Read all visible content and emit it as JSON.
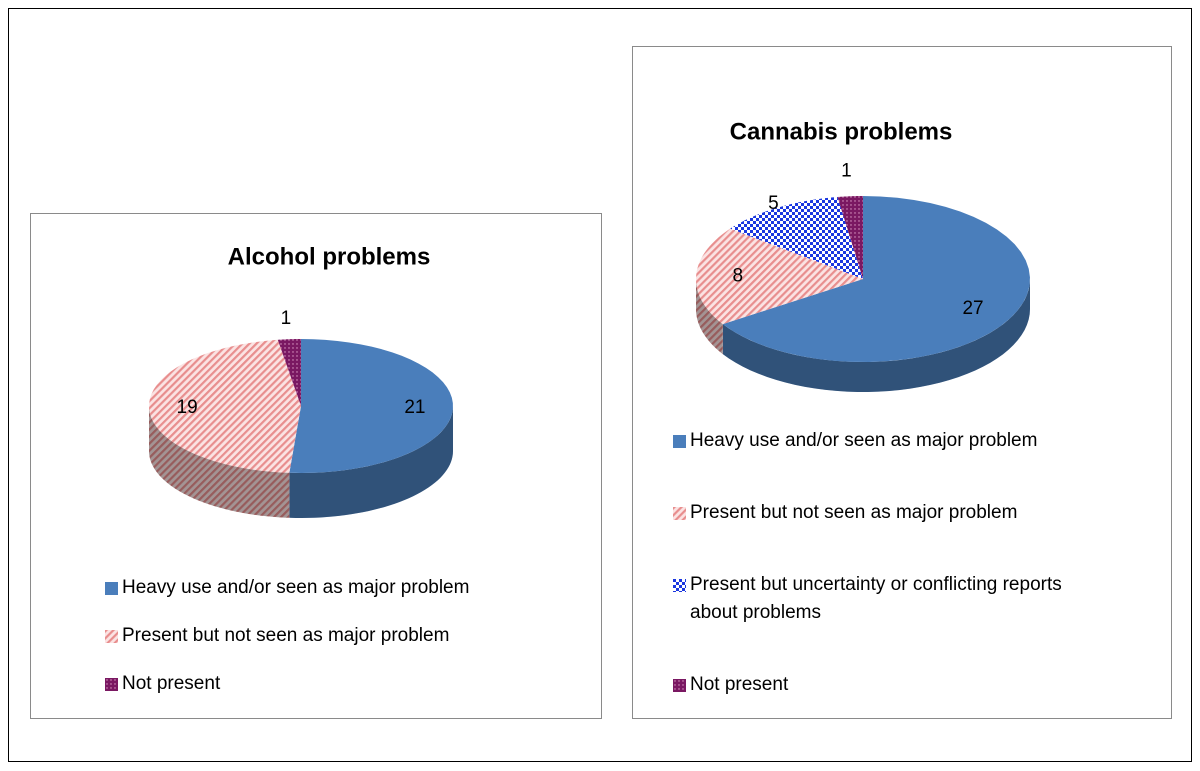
{
  "chart_data": [
    {
      "type": "pie",
      "title": "Alcohol problems",
      "categories": [
        "Heavy use and/or seen as major problem",
        "Present but not seen as major problem",
        "Not present"
      ],
      "values": [
        21,
        19,
        1
      ],
      "colors": [
        "#4a7ebb",
        "#e88e8e",
        "#7a1862"
      ],
      "fills": [
        "solid",
        "stripes",
        "dots"
      ]
    },
    {
      "type": "pie",
      "title": "Cannabis problems",
      "categories": [
        "Heavy use and/or seen as major problem",
        "Present but not seen as major problem",
        "Present but uncertainty or conflicting reports about problems",
        "Not present"
      ],
      "values": [
        27,
        8,
        5,
        1
      ],
      "colors": [
        "#4a7ebb",
        "#e88e8e",
        "#1a37e0",
        "#7a1862"
      ],
      "fills": [
        "solid",
        "stripes",
        "checker",
        "dots"
      ]
    }
  ]
}
